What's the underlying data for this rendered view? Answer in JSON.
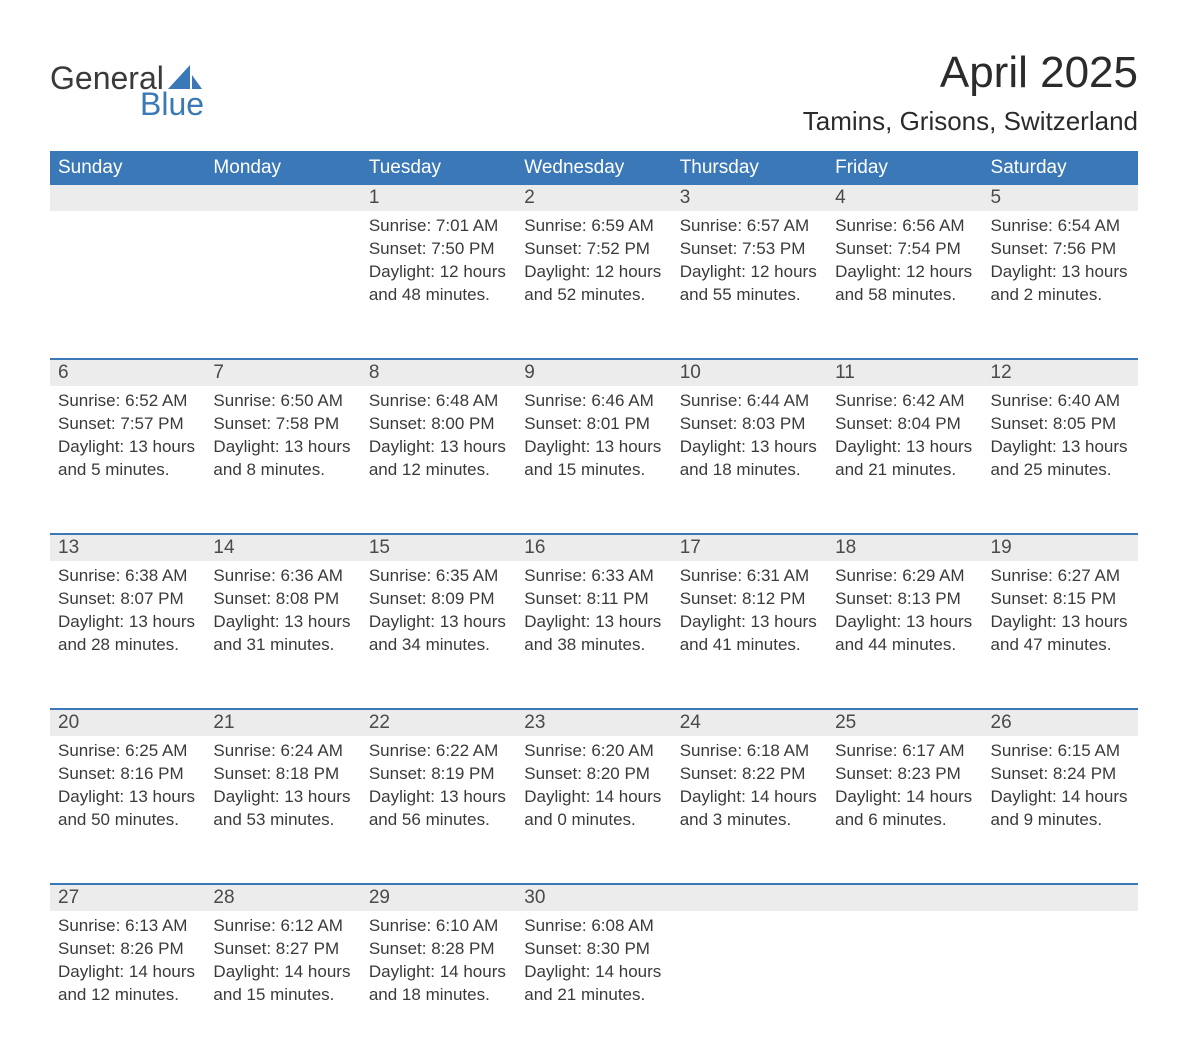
{
  "logo": {
    "text_top": "General",
    "text_bottom": "Blue",
    "accent_color": "#3b78b8"
  },
  "title": "April 2025",
  "location": "Tamins, Grisons, Switzerland",
  "colors": {
    "header_bg": "#3b78b8",
    "header_text": "#ffffff",
    "daynum_bg": "#ececec",
    "daynum_border": "#3b78b8",
    "body_text": "#3a3a3a",
    "page_bg": "#ffffff"
  },
  "typography": {
    "title_fontsize": 44,
    "location_fontsize": 26,
    "weekday_fontsize": 19,
    "daynum_fontsize": 19,
    "cell_fontsize": 17
  },
  "calendar": {
    "weekdays": [
      "Sunday",
      "Monday",
      "Tuesday",
      "Wednesday",
      "Thursday",
      "Friday",
      "Saturday"
    ],
    "start_weekday_index": 2,
    "days": [
      {
        "n": 1,
        "sunrise": "7:01 AM",
        "sunset": "7:50 PM",
        "daylight": "12 hours and 48 minutes."
      },
      {
        "n": 2,
        "sunrise": "6:59 AM",
        "sunset": "7:52 PM",
        "daylight": "12 hours and 52 minutes."
      },
      {
        "n": 3,
        "sunrise": "6:57 AM",
        "sunset": "7:53 PM",
        "daylight": "12 hours and 55 minutes."
      },
      {
        "n": 4,
        "sunrise": "6:56 AM",
        "sunset": "7:54 PM",
        "daylight": "12 hours and 58 minutes."
      },
      {
        "n": 5,
        "sunrise": "6:54 AM",
        "sunset": "7:56 PM",
        "daylight": "13 hours and 2 minutes."
      },
      {
        "n": 6,
        "sunrise": "6:52 AM",
        "sunset": "7:57 PM",
        "daylight": "13 hours and 5 minutes."
      },
      {
        "n": 7,
        "sunrise": "6:50 AM",
        "sunset": "7:58 PM",
        "daylight": "13 hours and 8 minutes."
      },
      {
        "n": 8,
        "sunrise": "6:48 AM",
        "sunset": "8:00 PM",
        "daylight": "13 hours and 12 minutes."
      },
      {
        "n": 9,
        "sunrise": "6:46 AM",
        "sunset": "8:01 PM",
        "daylight": "13 hours and 15 minutes."
      },
      {
        "n": 10,
        "sunrise": "6:44 AM",
        "sunset": "8:03 PM",
        "daylight": "13 hours and 18 minutes."
      },
      {
        "n": 11,
        "sunrise": "6:42 AM",
        "sunset": "8:04 PM",
        "daylight": "13 hours and 21 minutes."
      },
      {
        "n": 12,
        "sunrise": "6:40 AM",
        "sunset": "8:05 PM",
        "daylight": "13 hours and 25 minutes."
      },
      {
        "n": 13,
        "sunrise": "6:38 AM",
        "sunset": "8:07 PM",
        "daylight": "13 hours and 28 minutes."
      },
      {
        "n": 14,
        "sunrise": "6:36 AM",
        "sunset": "8:08 PM",
        "daylight": "13 hours and 31 minutes."
      },
      {
        "n": 15,
        "sunrise": "6:35 AM",
        "sunset": "8:09 PM",
        "daylight": "13 hours and 34 minutes."
      },
      {
        "n": 16,
        "sunrise": "6:33 AM",
        "sunset": "8:11 PM",
        "daylight": "13 hours and 38 minutes."
      },
      {
        "n": 17,
        "sunrise": "6:31 AM",
        "sunset": "8:12 PM",
        "daylight": "13 hours and 41 minutes."
      },
      {
        "n": 18,
        "sunrise": "6:29 AM",
        "sunset": "8:13 PM",
        "daylight": "13 hours and 44 minutes."
      },
      {
        "n": 19,
        "sunrise": "6:27 AM",
        "sunset": "8:15 PM",
        "daylight": "13 hours and 47 minutes."
      },
      {
        "n": 20,
        "sunrise": "6:25 AM",
        "sunset": "8:16 PM",
        "daylight": "13 hours and 50 minutes."
      },
      {
        "n": 21,
        "sunrise": "6:24 AM",
        "sunset": "8:18 PM",
        "daylight": "13 hours and 53 minutes."
      },
      {
        "n": 22,
        "sunrise": "6:22 AM",
        "sunset": "8:19 PM",
        "daylight": "13 hours and 56 minutes."
      },
      {
        "n": 23,
        "sunrise": "6:20 AM",
        "sunset": "8:20 PM",
        "daylight": "14 hours and 0 minutes."
      },
      {
        "n": 24,
        "sunrise": "6:18 AM",
        "sunset": "8:22 PM",
        "daylight": "14 hours and 3 minutes."
      },
      {
        "n": 25,
        "sunrise": "6:17 AM",
        "sunset": "8:23 PM",
        "daylight": "14 hours and 6 minutes."
      },
      {
        "n": 26,
        "sunrise": "6:15 AM",
        "sunset": "8:24 PM",
        "daylight": "14 hours and 9 minutes."
      },
      {
        "n": 27,
        "sunrise": "6:13 AM",
        "sunset": "8:26 PM",
        "daylight": "14 hours and 12 minutes."
      },
      {
        "n": 28,
        "sunrise": "6:12 AM",
        "sunset": "8:27 PM",
        "daylight": "14 hours and 15 minutes."
      },
      {
        "n": 29,
        "sunrise": "6:10 AM",
        "sunset": "8:28 PM",
        "daylight": "14 hours and 18 minutes."
      },
      {
        "n": 30,
        "sunrise": "6:08 AM",
        "sunset": "8:30 PM",
        "daylight": "14 hours and 21 minutes."
      }
    ],
    "labels": {
      "sunrise": "Sunrise:",
      "sunset": "Sunset:",
      "daylight": "Daylight:"
    }
  }
}
